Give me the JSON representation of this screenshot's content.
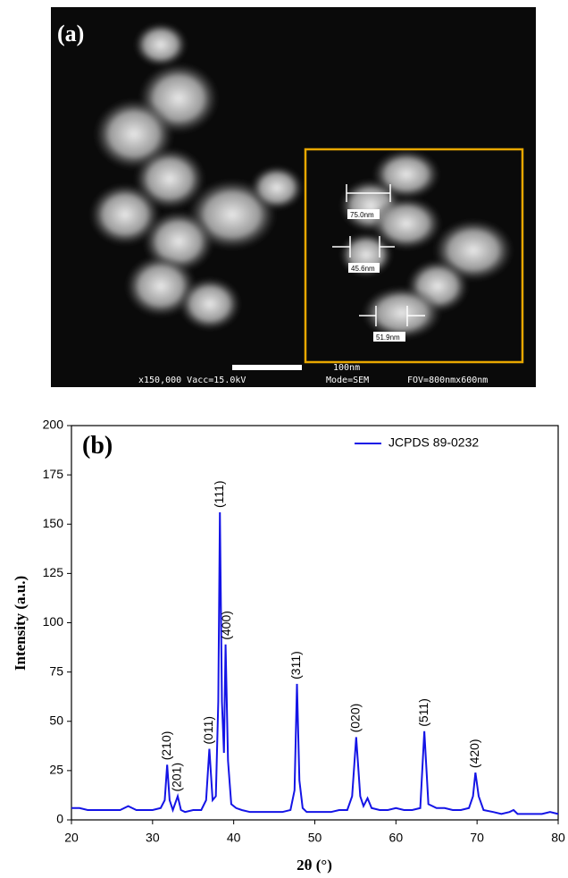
{
  "sem_image": {
    "label": "(a)",
    "measurements": [
      "75.0nm",
      "45.6nm",
      "51.9nm"
    ],
    "scale_bar": "100nm",
    "footer": [
      "x150,000 Vacc=15.0kV",
      "Mode=SEM",
      "FOV=800nmx600nm"
    ]
  },
  "chart_data": {
    "type": "line",
    "title": "(b)",
    "x_label": "2θ (°)",
    "y_label": "Intensity (a.u.)",
    "x": [
      20,
      21,
      22,
      23,
      24,
      25,
      26,
      27,
      28,
      29,
      30,
      31,
      31.5,
      31.8,
      32.1,
      32.5,
      33.1,
      33.5,
      34,
      35,
      36,
      36.6,
      37,
      37.4,
      37.8,
      38.1,
      38.3,
      38.55,
      38.8,
      39,
      39.3,
      39.7,
      40.3,
      41,
      42,
      43,
      44,
      45,
      46,
      47,
      47.5,
      47.8,
      48.1,
      48.5,
      49,
      50,
      51,
      52,
      53,
      54,
      54.6,
      55.1,
      55.6,
      56,
      56.5,
      57,
      58,
      59,
      60,
      61,
      62,
      63,
      63.5,
      64,
      65,
      66,
      67,
      68,
      69,
      69.5,
      69.8,
      70.2,
      70.8,
      72,
      73,
      74,
      74.5,
      75,
      76,
      77,
      78,
      79,
      80
    ],
    "series": [
      {
        "name": "JCPDS 89-0232",
        "color": "#1414e6",
        "values": [
          6,
          6,
          5,
          5,
          5,
          5,
          5,
          7,
          5,
          5,
          5,
          6,
          10,
          28,
          10,
          5,
          12,
          5,
          4,
          5,
          5,
          10,
          36,
          10,
          12,
          60,
          156,
          60,
          34,
          89,
          30,
          8,
          6,
          5,
          4,
          4,
          4,
          4,
          4,
          5,
          15,
          69,
          20,
          6,
          4,
          4,
          4,
          4,
          5,
          5,
          12,
          42,
          12,
          7,
          11,
          6,
          5,
          5,
          6,
          5,
          5,
          6,
          45,
          8,
          6,
          6,
          5,
          5,
          6,
          12,
          24,
          12,
          5,
          4,
          3,
          4,
          5,
          3,
          3,
          3,
          3,
          4,
          3
        ]
      }
    ],
    "annotations": [
      {
        "text": "(210)",
        "x": 31.8,
        "y": 28
      },
      {
        "text": "(201)",
        "x": 33.1,
        "y": 12
      },
      {
        "text": "(011)",
        "x": 37,
        "y": 36
      },
      {
        "text": "(111)",
        "x": 38.3,
        "y": 156
      },
      {
        "text": "(400)",
        "x": 39.2,
        "y": 89
      },
      {
        "text": "(311)",
        "x": 47.8,
        "y": 69
      },
      {
        "text": "(020)",
        "x": 55.1,
        "y": 42
      },
      {
        "text": "(511)",
        "x": 63.5,
        "y": 45
      },
      {
        "text": "(420)",
        "x": 69.8,
        "y": 24
      }
    ],
    "xlim": [
      20,
      80
    ],
    "xticks": [
      20,
      30,
      40,
      50,
      60,
      70,
      80
    ],
    "ylim": [
      0,
      200
    ],
    "yticks": [
      0,
      25,
      50,
      75,
      100,
      125,
      150,
      175,
      200
    ],
    "legend": "upper right",
    "grid": false
  }
}
